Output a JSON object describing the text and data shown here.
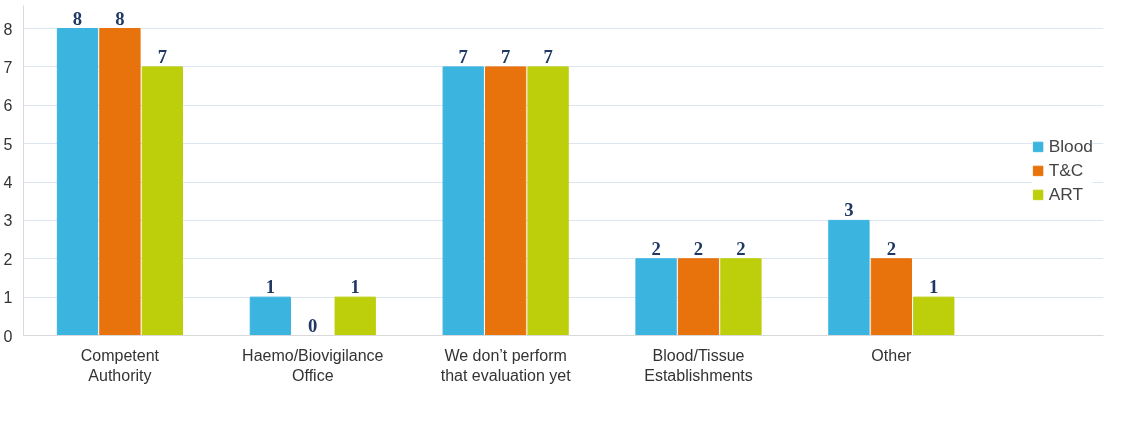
{
  "chart_data": {
    "type": "bar",
    "categories": [
      "Competent Authority",
      "Haemo/Biovigilance Office",
      "We don’t perform that evaluation yet",
      "Blood/Tissue Establishments",
      "Other"
    ],
    "series": [
      {
        "name": "Blood",
        "color": "#3bb4e0",
        "values": [
          8,
          1,
          7,
          2,
          3
        ]
      },
      {
        "name": "T&C",
        "color": "#e8720c",
        "values": [
          8,
          0,
          7,
          2,
          2
        ]
      },
      {
        "name": "ART",
        "color": "#bccf0a",
        "values": [
          7,
          1,
          7,
          2,
          1
        ]
      }
    ],
    "ylim": [
      0,
      8.6
    ],
    "yticks": [
      0,
      1,
      2,
      3,
      4,
      5,
      6,
      7,
      8
    ],
    "grid": "y",
    "legend": "right",
    "data_labels": true
  }
}
